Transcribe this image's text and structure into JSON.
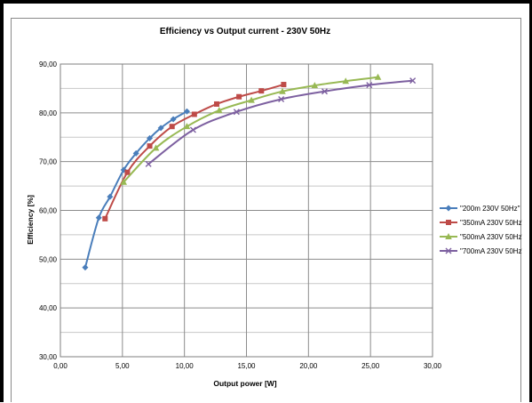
{
  "chart_data": {
    "type": "line",
    "title": "Efficiency vs Output current - 230V 50Hz",
    "xlabel": "Output power [W]",
    "ylabel": "Efficiency [%]",
    "xlim": [
      0,
      30
    ],
    "ylim": [
      30,
      90
    ],
    "xticks": [
      0,
      5,
      10,
      15,
      20,
      25,
      30
    ],
    "yticks": [
      30,
      40,
      50,
      60,
      70,
      80,
      90
    ],
    "xtick_labels": [
      "0,00",
      "5,00",
      "10,00",
      "15,00",
      "20,00",
      "25,00",
      "30,00"
    ],
    "ytick_labels": [
      "30,00",
      "40,00",
      "50,00",
      "60,00",
      "70,00",
      "80,00",
      "90,00"
    ],
    "grid": true,
    "legend_position": "right",
    "series": [
      {
        "name": "\"200m 230V 50Hz\"",
        "color": "#4a7ebb",
        "marker": "diamond",
        "points": [
          [
            2.0,
            48.3
          ],
          [
            3.1,
            58.5
          ],
          [
            4.0,
            62.8
          ],
          [
            5.1,
            68.3
          ],
          [
            6.1,
            71.7
          ],
          [
            7.2,
            74.8
          ],
          [
            8.1,
            76.9
          ],
          [
            9.1,
            78.7
          ],
          [
            10.2,
            80.3
          ]
        ]
      },
      {
        "name": "\"350mA 230V 50Hz\"",
        "color": "#be4b48",
        "marker": "square",
        "points": [
          [
            3.6,
            58.3
          ],
          [
            5.4,
            67.8
          ],
          [
            7.2,
            73.2
          ],
          [
            9.0,
            77.2
          ],
          [
            10.8,
            79.7
          ],
          [
            12.6,
            81.8
          ],
          [
            14.4,
            83.3
          ],
          [
            16.2,
            84.5
          ],
          [
            18.0,
            85.8
          ]
        ]
      },
      {
        "name": "\"500mA 230V 50Hz\"",
        "color": "#98b954",
        "marker": "triangle",
        "points": [
          [
            5.1,
            65.8
          ],
          [
            7.7,
            72.8
          ],
          [
            10.2,
            77.2
          ],
          [
            12.8,
            80.5
          ],
          [
            15.4,
            82.6
          ],
          [
            17.9,
            84.4
          ],
          [
            20.5,
            85.6
          ],
          [
            23.0,
            86.5
          ],
          [
            25.6,
            87.3
          ]
        ]
      },
      {
        "name": "\"700mA 230V 50Hz\"",
        "color": "#7d60a0",
        "marker": "x",
        "points": [
          [
            7.1,
            69.5
          ],
          [
            10.7,
            76.5
          ],
          [
            14.2,
            80.2
          ],
          [
            17.8,
            82.8
          ],
          [
            21.3,
            84.4
          ],
          [
            24.9,
            85.7
          ],
          [
            28.4,
            86.6
          ]
        ]
      }
    ]
  }
}
